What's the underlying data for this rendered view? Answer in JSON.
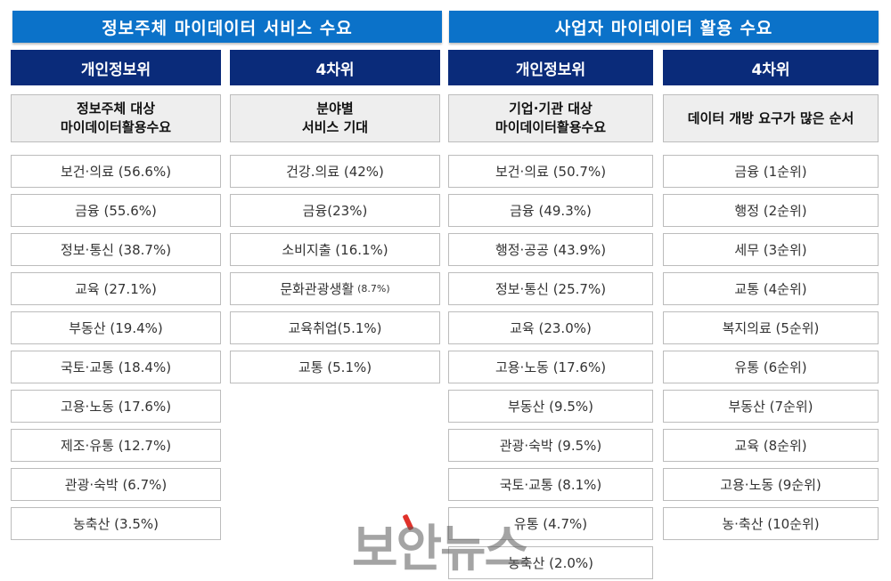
{
  "banners": {
    "left": "정보주체 마이데이터 서비스 수요",
    "right": "사업자 마이데이터 활용 수요"
  },
  "columns": [
    {
      "header": "개인정보위",
      "sub_line1": "정보주체 대상",
      "sub_line2": "마이데이터활용수요",
      "items": [
        {
          "label": "보건·의료 (56.6%)"
        },
        {
          "label": "금융 (55.6%)"
        },
        {
          "label": "정보·통신 (38.7%)"
        },
        {
          "label": "교육 (27.1%)"
        },
        {
          "label": "부동산 (19.4%)"
        },
        {
          "label": "국토·교통 (18.4%)"
        },
        {
          "label": "고용·노동 (17.6%)"
        },
        {
          "label": "제조·유통 (12.7%)"
        },
        {
          "label": "관광·숙박 (6.7%)"
        },
        {
          "label": "농축산 (3.5%)"
        }
      ]
    },
    {
      "header": "4차위",
      "sub_line1": "분야별",
      "sub_line2": "서비스 기대",
      "items": [
        {
          "label": "건강.의료 (42%)"
        },
        {
          "label": "금융(23%)"
        },
        {
          "label": "소비지출 (16.1%)"
        },
        {
          "label": "문화관광생활",
          "small": "(8.7%)"
        },
        {
          "label": "교육취업(5.1%)"
        },
        {
          "label": "교통 (5.1%)"
        }
      ]
    },
    {
      "header": "개인정보위",
      "sub_line1": "기업·기관 대상",
      "sub_line2": "마이데이터활용수요",
      "items": [
        {
          "label": "보건·의료 (50.7%)"
        },
        {
          "label": "금융 (49.3%)"
        },
        {
          "label": "행정·공공 (43.9%)"
        },
        {
          "label": "정보·통신 (25.7%)"
        },
        {
          "label": "교육 (23.0%)"
        },
        {
          "label": "고용·노동 (17.6%)"
        },
        {
          "label": "부동산 (9.5%)"
        },
        {
          "label": "관광·숙박 (9.5%)"
        },
        {
          "label": "국토·교통 (8.1%)"
        },
        {
          "label": "유통 (4.7%)"
        },
        {
          "label": "농축산 (2.0%)"
        }
      ]
    },
    {
      "header": "4차위",
      "sub_line1": "데이터 개방 요구가 많은 순서",
      "sub_line2": "",
      "items": [
        {
          "label": "금융 (1순위)"
        },
        {
          "label": "행정 (2순위)"
        },
        {
          "label": "세무 (3순위)"
        },
        {
          "label": "교통 (4순위)"
        },
        {
          "label": "복지의료 (5순위)"
        },
        {
          "label": "유통 (6순위)"
        },
        {
          "label": "부동산 (7순위)"
        },
        {
          "label": "교육 (8순위)"
        },
        {
          "label": "고용·노동 (9순위)"
        },
        {
          "label": "농·축산 (10순위)"
        }
      ]
    }
  ],
  "watermark": "보안뉴스"
}
